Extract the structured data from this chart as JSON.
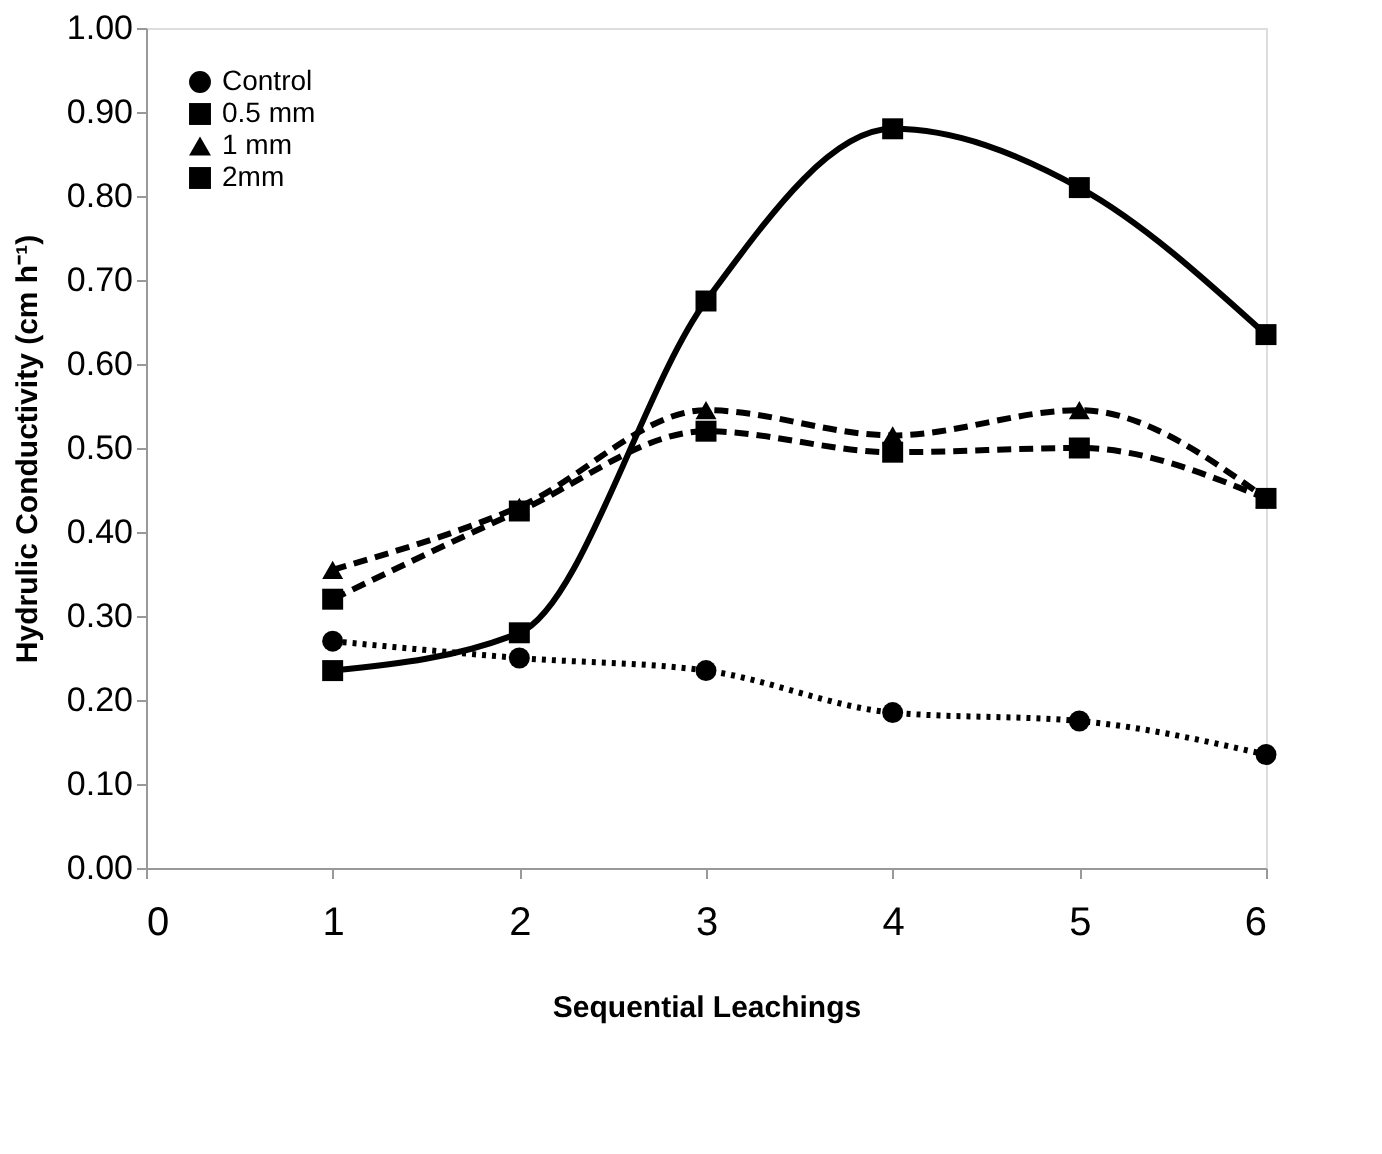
{
  "chart_data": {
    "type": "line",
    "xlabel": "Sequential Leachings",
    "ylabel": "Hydrulic Conductivity  (cm h⁻¹)",
    "x": [
      1,
      2,
      3,
      4,
      5,
      6
    ],
    "series": [
      {
        "name": "Control",
        "color": "#000000",
        "line_style": "dotted",
        "marker": "circle",
        "values": [
          0.27,
          0.25,
          0.235,
          0.185,
          0.175,
          0.135
        ]
      },
      {
        "name": "0.5 mm",
        "color": "#000000",
        "line_style": "solid",
        "marker": "square",
        "values": [
          0.235,
          0.28,
          0.675,
          0.88,
          0.81,
          0.635
        ]
      },
      {
        "name": "1 mm",
        "color": "#000000",
        "line_style": "dashed",
        "marker": "triangle",
        "values": [
          0.355,
          0.43,
          0.545,
          0.515,
          0.545,
          0.44
        ]
      },
      {
        "name": "2mm",
        "color": "#000000",
        "line_style": "dashed",
        "marker": "square",
        "values": [
          0.32,
          0.425,
          0.52,
          0.495,
          0.5,
          0.44
        ]
      }
    ],
    "xlim": [
      0,
      6
    ],
    "xticks": [
      0,
      1,
      2,
      3,
      4,
      5,
      6
    ],
    "ylim": [
      0,
      1
    ],
    "yticks": [
      {
        "value": 0,
        "label": "0.00"
      },
      {
        "value": 0.1,
        "label": "0.10"
      },
      {
        "value": 0.2,
        "label": "0.20"
      },
      {
        "value": 0.3,
        "label": "0.30"
      },
      {
        "value": 0.4,
        "label": "0.40"
      },
      {
        "value": 0.5,
        "label": "0.50"
      },
      {
        "value": 0.6,
        "label": "0.60"
      },
      {
        "value": 0.7,
        "label": "0.70"
      },
      {
        "value": 0.8,
        "label": "0.80"
      },
      {
        "value": 0.9,
        "label": "0.90"
      },
      {
        "value": 1,
        "label": "1.00"
      }
    ],
    "grid": false,
    "legend": "top left"
  }
}
